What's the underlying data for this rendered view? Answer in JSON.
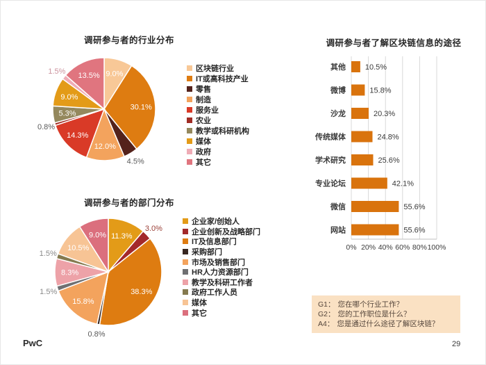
{
  "page": {
    "footer_logo": "PwC",
    "page_number": "29"
  },
  "chart_data": [
    {
      "type": "pie",
      "title": "调研参与者的行业分布",
      "legend_position": "right",
      "slices": [
        {
          "label": "区块链行业",
          "value": 9.0,
          "display": "9.0%",
          "color": "#F8C897",
          "label_pos": "inside"
        },
        {
          "label": "IT或高科技产业",
          "value": 30.1,
          "display": "30.1%",
          "color": "#DE7C11",
          "label_pos": "inside"
        },
        {
          "label": "零售",
          "value": 4.5,
          "display": "4.5%",
          "color": "#54221B",
          "label_pos": "outside",
          "label_color": "#595959"
        },
        {
          "label": "制造",
          "value": 12.0,
          "display": "12.0%",
          "color": "#F3A35D",
          "label_pos": "inside"
        },
        {
          "label": "服务业",
          "value": 14.3,
          "display": "14.3%",
          "color": "#D93A27",
          "label_pos": "inside"
        },
        {
          "label": "农业",
          "value": 0.8,
          "display": "0.8%",
          "color": "#A02C24",
          "label_pos": "outside",
          "label_color": "#595959"
        },
        {
          "label": "教学或科研机构",
          "value": 5.3,
          "display": "5.3%",
          "color": "#94885D",
          "label_pos": "inside"
        },
        {
          "label": "媒体",
          "value": 9.0,
          "display": "9.0%",
          "color": "#E39B18",
          "label_pos": "inside"
        },
        {
          "label": "政府",
          "value": 1.5,
          "display": "1.5%",
          "color": "#EFACB6",
          "label_pos": "outside",
          "label_color": "#CC939E"
        },
        {
          "label": "其它",
          "value": 13.5,
          "display": "13.5%",
          "color": "#E0757F",
          "label_pos": "inside"
        }
      ]
    },
    {
      "type": "pie",
      "title": "调研参与者的部门分布",
      "legend_position": "right",
      "slices": [
        {
          "label": "企业家/创始人",
          "value": 11.3,
          "display": "11.3%",
          "color": "#E39B18",
          "label_pos": "inside"
        },
        {
          "label": "企业创新及战略部门",
          "value": 3.0,
          "display": "3.0%",
          "color": "#A3292B",
          "label_pos": "outside",
          "label_color": "#9B4038"
        },
        {
          "label": "IT及信息部门",
          "value": 38.3,
          "display": "38.3%",
          "color": "#DE7C11",
          "label_pos": "inside"
        },
        {
          "label": "采购部门",
          "value": 0.8,
          "display": "0.8%",
          "color": "#372620",
          "label_pos": "outside",
          "label_color": "#595959"
        },
        {
          "label": "市场及销售部门",
          "value": 15.8,
          "display": "15.8%",
          "color": "#F3A35D",
          "label_pos": "inside"
        },
        {
          "label": "HR人力资源部门",
          "value": 1.5,
          "display": "1.5%",
          "color": "#6F7072",
          "label_pos": "outside",
          "label_color": "#8A8A8A"
        },
        {
          "label": "教学及科研工作者",
          "value": 8.3,
          "display": "8.3%",
          "color": "#EDA2A8",
          "label_pos": "inside"
        },
        {
          "label": "政府工作人员",
          "value": 1.5,
          "display": "1.5%",
          "color": "#857A4F",
          "label_pos": "outside",
          "label_color": "#8A8A8A"
        },
        {
          "label": "媒体",
          "value": 10.5,
          "display": "10.5%",
          "color": "#F7C495",
          "label_pos": "inside"
        },
        {
          "label": "其它",
          "value": 9.0,
          "display": "9.0%",
          "color": "#DB6F7D",
          "label_pos": "inside"
        }
      ]
    },
    {
      "type": "bar",
      "orientation": "horizontal",
      "title": "调研参与者了解区块链信息的途径",
      "categories": [
        "其他",
        "微博",
        "沙龙",
        "传统媒体",
        "学术研究",
        "专业论坛",
        "微信",
        "网站"
      ],
      "values": [
        10.5,
        15.8,
        20.3,
        24.8,
        25.6,
        42.1,
        55.6,
        55.6
      ],
      "value_labels": [
        "10.5%",
        "15.8%",
        "20.3%",
        "24.8%",
        "25.6%",
        "42.1%",
        "55.6%",
        "55.6%"
      ],
      "x_ticks": [
        "0%",
        "20%",
        "40%",
        "60%",
        "80%",
        "100%"
      ],
      "xlim": [
        0,
        100
      ],
      "grid": true,
      "legend_position": "none",
      "bar_color": "#D9730D"
    }
  ],
  "questions": {
    "bg_color": "#FAE1C3",
    "items": [
      {
        "label": "G1：",
        "text": "您在哪个行业工作？"
      },
      {
        "label": "G2：",
        "text": "您的工作职位是什么？"
      },
      {
        "label": "A4：",
        "text": "您是通过什么途径了解区块链？"
      }
    ]
  }
}
